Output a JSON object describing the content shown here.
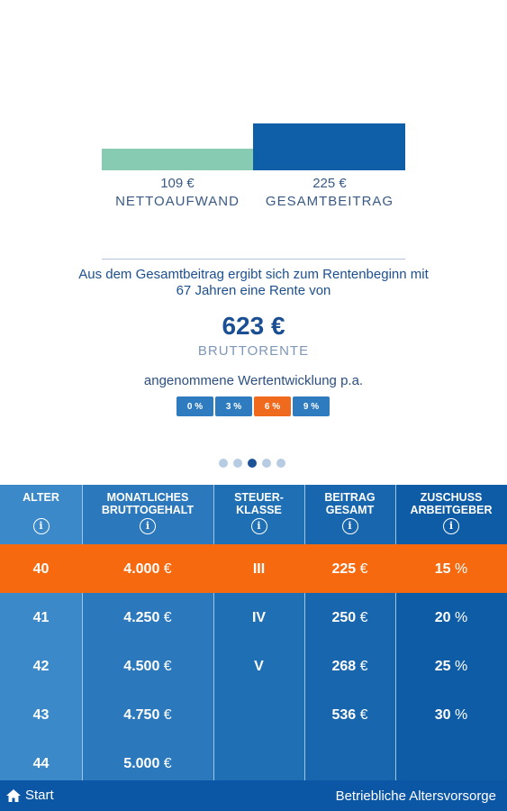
{
  "comparison": {
    "net": {
      "value": "109 €",
      "label": "NETTOAUFWAND"
    },
    "total": {
      "value": "225 €",
      "label": "GESAMTBEITRAG"
    }
  },
  "description": "Aus dem Gesamtbeitrag ergibt sich zum Rentenbeginn mit 67 Jahren eine Rente von",
  "pension": {
    "value": "623 €",
    "label": "BRUTTORENTE"
  },
  "growth": {
    "title": "angenommene Wertentwicklung p.a.",
    "options": [
      "0 %",
      "3 %",
      "6 %",
      "9 %"
    ],
    "selected": "6 %"
  },
  "pager": {
    "count": 5,
    "active_index": 2
  },
  "table": {
    "headers": [
      {
        "line1": "ALTER",
        "line2": ""
      },
      {
        "line1": "MONATLICHES",
        "line2": "BRUTTOGEHALT"
      },
      {
        "line1": "STEUER-",
        "line2": "KLASSE"
      },
      {
        "line1": "BEITRAG",
        "line2": "GESAMT"
      },
      {
        "line1": "ZUSCHUSS",
        "line2": "ARBEITGEBER"
      }
    ],
    "info_symbol": "i",
    "ages": [
      "40",
      "41",
      "42",
      "43",
      "44"
    ],
    "salaries": [
      {
        "num": "4.000",
        "unit": "€"
      },
      {
        "num": "4.250",
        "unit": "€"
      },
      {
        "num": "4.500",
        "unit": "€"
      },
      {
        "num": "4.750",
        "unit": "€"
      },
      {
        "num": "5.000",
        "unit": "€"
      }
    ],
    "tax_classes": [
      "III",
      "IV",
      "V"
    ],
    "contributions": [
      {
        "num": "225",
        "unit": "€"
      },
      {
        "num": "250",
        "unit": "€"
      },
      {
        "num": "268",
        "unit": "€"
      },
      {
        "num": "536",
        "unit": "€"
      }
    ],
    "employer_share": [
      {
        "num": "15",
        "unit": "%"
      },
      {
        "num": "20",
        "unit": "%"
      },
      {
        "num": "25",
        "unit": "%"
      },
      {
        "num": "30",
        "unit": "%"
      }
    ]
  },
  "footer": {
    "home_label": "Start",
    "title": "Betriebliche Altersvorsorge"
  },
  "colors": {
    "accent_orange": "#f7690f",
    "primary_blue": "#0e5fa8",
    "net_green": "#86cbb2"
  }
}
